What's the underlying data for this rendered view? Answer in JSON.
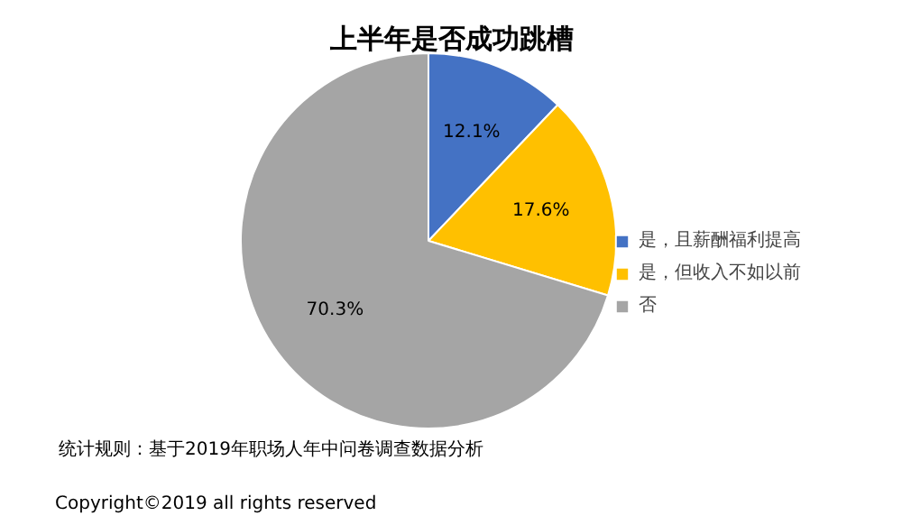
{
  "chart_data": {
    "type": "pie",
    "title": "上半年是否成功跳槽",
    "categories": [
      "是，且薪酬福利提高",
      "是，但收入不如以前",
      "否"
    ],
    "values": [
      12.1,
      17.6,
      70.3
    ],
    "colors": [
      "#4472c4",
      "#ffc000",
      "#a5a5a5"
    ],
    "value_labels": [
      "12.1%",
      "17.6%",
      "70.3%"
    ],
    "legend": "right",
    "annotations": [
      "统计规则：基于2019年职场人年中问卷调查数据分析",
      "Copyright©2019 all rights reserved"
    ]
  }
}
